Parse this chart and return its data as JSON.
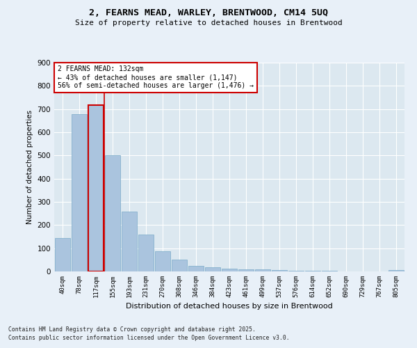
{
  "title_line1": "2, FEARNS MEAD, WARLEY, BRENTWOOD, CM14 5UQ",
  "title_line2": "Size of property relative to detached houses in Brentwood",
  "xlabel": "Distribution of detached houses by size in Brentwood",
  "ylabel": "Number of detached properties",
  "categories": [
    "40sqm",
    "78sqm",
    "117sqm",
    "155sqm",
    "193sqm",
    "231sqm",
    "270sqm",
    "308sqm",
    "346sqm",
    "384sqm",
    "423sqm",
    "461sqm",
    "499sqm",
    "537sqm",
    "576sqm",
    "614sqm",
    "652sqm",
    "690sqm",
    "729sqm",
    "767sqm",
    "805sqm"
  ],
  "values": [
    143,
    678,
    718,
    500,
    257,
    160,
    88,
    52,
    25,
    18,
    12,
    10,
    8,
    5,
    3,
    2,
    2,
    1,
    1,
    1,
    5
  ],
  "bar_color": "#aac4de",
  "bar_edgecolor": "#7aaac8",
  "highlight_bar_index": 2,
  "highlight_color_edge": "#cc0000",
  "vline_x": 2.5,
  "annotation_text": "2 FEARNS MEAD: 132sqm\n← 43% of detached houses are smaller (1,147)\n56% of semi-detached houses are larger (1,476) →",
  "annotation_box_color": "#ffffff",
  "annotation_box_edge": "#cc0000",
  "ylim": [
    0,
    900
  ],
  "yticks": [
    0,
    100,
    200,
    300,
    400,
    500,
    600,
    700,
    800,
    900
  ],
  "background_color": "#dce8f0",
  "grid_color": "#ffffff",
  "fig_background": "#e8f0f8",
  "footer_line1": "Contains HM Land Registry data © Crown copyright and database right 2025.",
  "footer_line2": "Contains public sector information licensed under the Open Government Licence v3.0."
}
